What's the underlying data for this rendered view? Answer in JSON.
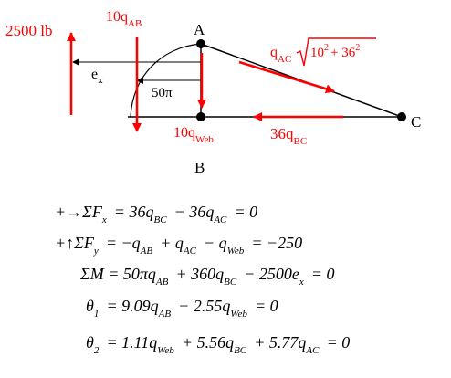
{
  "diagram": {
    "labels": {
      "A": "A",
      "B": "B",
      "C": "C",
      "ex": "e",
      "ex_sub": "x",
      "pi50": "50π"
    },
    "forces": {
      "load": "2500 lb",
      "qab_coeff": "10q",
      "qab_sub": "AB",
      "qweb_coeff": "10q",
      "qweb_sub": "Web",
      "qbc_coeff": "36q",
      "qbc_sub": "BC",
      "qac_q": "q",
      "qac_sub": "AC",
      "qac_radicand_a": "10",
      "qac_radicand_a_exp": "2",
      "qac_plus": "+ 36",
      "qac_radicand_b_exp": "2"
    },
    "colors": {
      "force_arrows": "#ff0000",
      "structure": "#000000"
    }
  },
  "equations": [
    {
      "prefix": "+→ΣF",
      "prefix_sub": "x",
      "body": [
        {
          "t": " = 36q",
          "s": "BC"
        },
        {
          "t": " − 36q",
          "s": "AC"
        },
        {
          "t": " = 0",
          "s": ""
        }
      ]
    },
    {
      "prefix": "+↑ΣF",
      "prefix_sub": "y",
      "body": [
        {
          "t": " = −q",
          "s": "AB"
        },
        {
          "t": " + q",
          "s": "AC"
        },
        {
          "t": " − q",
          "s": "Web"
        },
        {
          "t": " = −250",
          "s": ""
        }
      ]
    },
    {
      "prefix": "ΣM",
      "prefix_sub": "",
      "body": [
        {
          "t": " = 50πq",
          "s": "AB"
        },
        {
          "t": " + 360q",
          "s": "BC"
        },
        {
          "t": " − 2500e",
          "s": "x"
        },
        {
          "t": " = 0",
          "s": ""
        }
      ]
    },
    {
      "prefix": "θ",
      "prefix_sub": "1",
      "body": [
        {
          "t": " = 9.09q",
          "s": "AB"
        },
        {
          "t": " − 2.55q",
          "s": "Web"
        },
        {
          "t": " = 0",
          "s": ""
        }
      ]
    },
    {
      "prefix": "θ",
      "prefix_sub": "2",
      "body": [
        {
          "t": " = 1.11q",
          "s": "Web"
        },
        {
          "t": " + 5.56q",
          "s": "BC"
        },
        {
          "t": " + 5.77q",
          "s": "AC"
        },
        {
          "t": " = 0",
          "s": ""
        }
      ]
    }
  ]
}
